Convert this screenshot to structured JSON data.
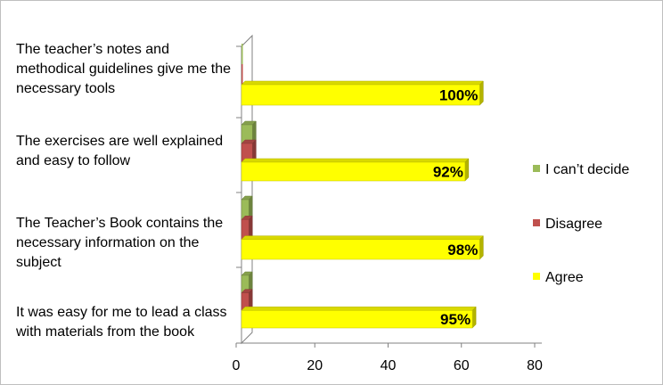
{
  "chart_data": {
    "type": "bar",
    "orientation": "horizontal",
    "style": "3d",
    "categories": [
      "The teacher’s notes and methodical guidelines give me the necessary tools",
      "The exercises are well explained and easy to follow",
      "The Teacher’s Book contains the necessary information on the subject",
      "It was easy for me to lead a class with materials from the book"
    ],
    "series": [
      {
        "name": "I can’t decide",
        "color": "#9BBB59",
        "values": [
          0,
          3,
          2,
          2
        ]
      },
      {
        "name": "Disagree",
        "color": "#C0504D",
        "values": [
          0,
          3,
          2,
          2
        ]
      },
      {
        "name": "Agree",
        "color": "#FFFF00",
        "values": [
          65,
          61,
          65,
          63
        ],
        "data_labels": [
          "100%",
          "92%",
          "98%",
          "95%"
        ]
      }
    ],
    "xlim": [
      0,
      80
    ],
    "x_ticks": [
      "0",
      "20",
      "40",
      "60",
      "80"
    ],
    "xlabel": "",
    "ylabel": "",
    "grid": false,
    "legend_position": "right"
  }
}
